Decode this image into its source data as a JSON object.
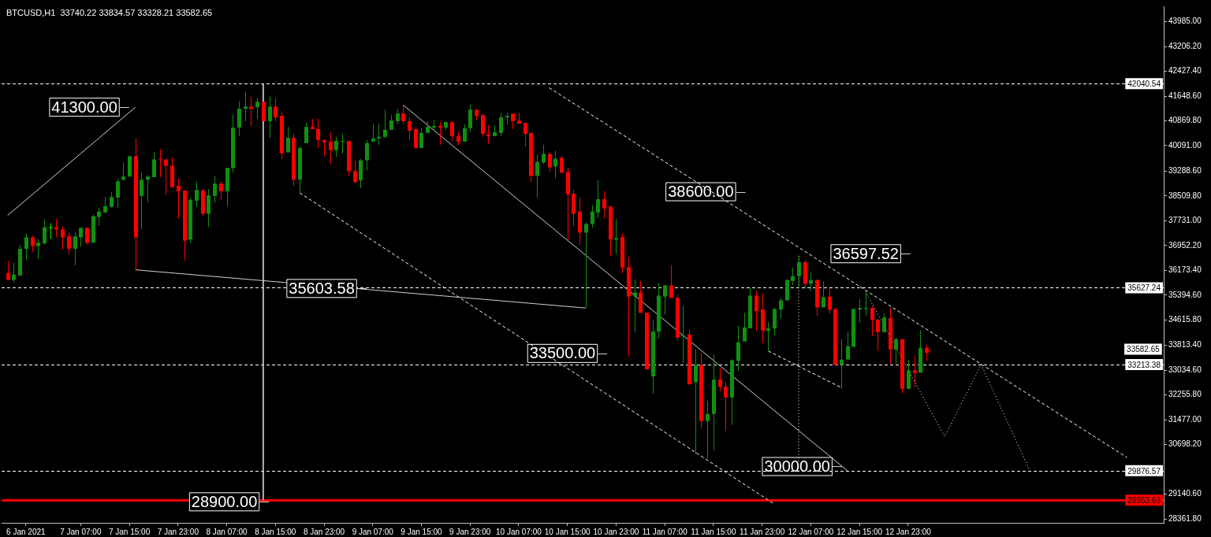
{
  "chart_data": {
    "type": "candlestick",
    "title": "BTCUSD,H1  33740.22 33834.57 33328.21 33582.65",
    "x": [
      "2021-01-06T19:00",
      "2021-01-06T20:00",
      "2021-01-06T21:00",
      "2021-01-06T22:00",
      "2021-01-06T23:00",
      "2021-01-07T00:00",
      "2021-01-07T01:00",
      "2021-01-07T02:00",
      "2021-01-07T03:00",
      "2021-01-07T04:00",
      "2021-01-07T05:00",
      "2021-01-07T06:00",
      "2021-01-07T07:00",
      "2021-01-07T08:00",
      "2021-01-07T09:00",
      "2021-01-07T10:00",
      "2021-01-07T11:00",
      "2021-01-07T12:00",
      "2021-01-07T13:00",
      "2021-01-07T14:00",
      "2021-01-07T15:00",
      "2021-01-07T16:00",
      "2021-01-07T17:00",
      "2021-01-07T18:00",
      "2021-01-07T19:00",
      "2021-01-07T20:00",
      "2021-01-07T21:00",
      "2021-01-07T22:00",
      "2021-01-07T23:00",
      "2021-01-08T00:00",
      "2021-01-08T01:00",
      "2021-01-08T02:00",
      "2021-01-08T03:00",
      "2021-01-08T04:00",
      "2021-01-08T05:00",
      "2021-01-08T06:00",
      "2021-01-08T07:00",
      "2021-01-08T08:00",
      "2021-01-08T09:00",
      "2021-01-08T10:00",
      "2021-01-08T11:00",
      "2021-01-08T12:00",
      "2021-01-08T13:00",
      "2021-01-08T14:00",
      "2021-01-08T15:00",
      "2021-01-08T16:00",
      "2021-01-08T17:00",
      "2021-01-08T18:00",
      "2021-01-08T19:00",
      "2021-01-08T20:00",
      "2021-01-08T21:00",
      "2021-01-08T22:00",
      "2021-01-08T23:00",
      "2021-01-09T00:00",
      "2021-01-09T01:00",
      "2021-01-09T02:00",
      "2021-01-09T03:00",
      "2021-01-09T04:00",
      "2021-01-09T05:00",
      "2021-01-09T06:00",
      "2021-01-09T07:00",
      "2021-01-09T08:00",
      "2021-01-09T09:00",
      "2021-01-09T10:00",
      "2021-01-09T11:00",
      "2021-01-09T12:00",
      "2021-01-09T13:00",
      "2021-01-09T14:00",
      "2021-01-09T15:00",
      "2021-01-09T16:00",
      "2021-01-09T17:00",
      "2021-01-09T18:00",
      "2021-01-09T19:00",
      "2021-01-09T20:00",
      "2021-01-09T21:00",
      "2021-01-09T22:00",
      "2021-01-09T23:00",
      "2021-01-10T00:00",
      "2021-01-10T01:00",
      "2021-01-10T02:00",
      "2021-01-10T03:00",
      "2021-01-10T04:00",
      "2021-01-10T05:00",
      "2021-01-10T06:00",
      "2021-01-10T07:00",
      "2021-01-10T08:00",
      "2021-01-10T09:00",
      "2021-01-10T10:00",
      "2021-01-10T11:00",
      "2021-01-10T12:00",
      "2021-01-10T13:00",
      "2021-01-10T14:00",
      "2021-01-10T15:00",
      "2021-01-10T16:00",
      "2021-01-10T17:00",
      "2021-01-10T18:00",
      "2021-01-10T19:00",
      "2021-01-10T20:00",
      "2021-01-10T21:00",
      "2021-01-10T22:00",
      "2021-01-10T23:00",
      "2021-01-11T00:00",
      "2021-01-11T01:00",
      "2021-01-11T02:00",
      "2021-01-11T03:00",
      "2021-01-11T04:00",
      "2021-01-11T05:00",
      "2021-01-11T06:00",
      "2021-01-11T07:00",
      "2021-01-11T08:00",
      "2021-01-11T09:00",
      "2021-01-11T10:00",
      "2021-01-11T11:00",
      "2021-01-11T12:00",
      "2021-01-11T13:00",
      "2021-01-11T14:00",
      "2021-01-11T15:00",
      "2021-01-11T16:00",
      "2021-01-11T17:00",
      "2021-01-11T18:00",
      "2021-01-11T19:00",
      "2021-01-11T20:00",
      "2021-01-11T21:00",
      "2021-01-11T22:00",
      "2021-01-11T23:00",
      "2021-01-12T00:00",
      "2021-01-12T01:00",
      "2021-01-12T02:00",
      "2021-01-12T03:00",
      "2021-01-12T04:00",
      "2021-01-12T05:00",
      "2021-01-12T06:00",
      "2021-01-12T07:00",
      "2021-01-12T08:00",
      "2021-01-12T09:00",
      "2021-01-12T10:00",
      "2021-01-12T11:00",
      "2021-01-12T12:00",
      "2021-01-12T13:00",
      "2021-01-12T14:00",
      "2021-01-12T15:00",
      "2021-01-12T16:00",
      "2021-01-12T17:00",
      "2021-01-12T18:00",
      "2021-01-12T19:00",
      "2021-01-12T20:00",
      "2021-01-12T21:00",
      "2021-01-12T22:00",
      "2021-01-12T23:00",
      "2021-01-13T00:00",
      "2021-01-13T01:00",
      "2021-01-13T02:00"
    ],
    "ohlc": [
      [
        36090,
        36480,
        35870,
        35870
      ],
      [
        35870,
        36410,
        35790,
        36040
      ],
      [
        36010,
        36970,
        36010,
        36850
      ],
      [
        36850,
        37340,
        36500,
        37210
      ],
      [
        37210,
        37260,
        36750,
        36940
      ],
      [
        36940,
        37160,
        36530,
        37040
      ],
      [
        37020,
        37780,
        36990,
        37530
      ],
      [
        37530,
        37650,
        37160,
        37530
      ],
      [
        37530,
        37780,
        37210,
        37460
      ],
      [
        37460,
        37560,
        36820,
        37210
      ],
      [
        37240,
        37360,
        36680,
        36850
      ],
      [
        36850,
        37360,
        36330,
        37240
      ],
      [
        37210,
        37510,
        36920,
        37510
      ],
      [
        37510,
        37510,
        36970,
        37040
      ],
      [
        37040,
        37920,
        37040,
        37870
      ],
      [
        37850,
        38140,
        37580,
        38020
      ],
      [
        37990,
        38480,
        37990,
        38190
      ],
      [
        38170,
        38630,
        38140,
        38480
      ],
      [
        38460,
        39050,
        38140,
        38970
      ],
      [
        39020,
        39560,
        39000,
        39120
      ],
      [
        39120,
        39760,
        39120,
        39760
      ],
      [
        39760,
        40320,
        36190,
        37210
      ],
      [
        38510,
        39270,
        37460,
        39020
      ],
      [
        39020,
        39170,
        38310,
        39120
      ],
      [
        39100,
        39900,
        39100,
        39660
      ],
      [
        39680,
        39980,
        39100,
        39660
      ],
      [
        39660,
        39660,
        38560,
        39460
      ],
      [
        39460,
        39730,
        38780,
        38780
      ],
      [
        38830,
        39050,
        37800,
        38660
      ],
      [
        38680,
        38680,
        36480,
        37110
      ],
      [
        37140,
        38460,
        37040,
        38390
      ],
      [
        38360,
        38970,
        38170,
        38700
      ],
      [
        38680,
        38730,
        37870,
        37950
      ],
      [
        37950,
        38730,
        37530,
        38530
      ],
      [
        38510,
        39140,
        38290,
        38900
      ],
      [
        38900,
        38970,
        38390,
        38660
      ],
      [
        38660,
        39390,
        38190,
        39390
      ],
      [
        39390,
        41080,
        39240,
        40660
      ],
      [
        40660,
        41490,
        40390,
        41250
      ],
      [
        41250,
        41790,
        40860,
        41320
      ],
      [
        41320,
        41640,
        40710,
        41250
      ],
      [
        41300,
        41590,
        40930,
        41470
      ],
      [
        41470,
        41470,
        40860,
        40860
      ],
      [
        40860,
        41640,
        40340,
        41320
      ],
      [
        41320,
        41590,
        40860,
        40980
      ],
      [
        41030,
        41120,
        39660,
        39850
      ],
      [
        39880,
        40680,
        39880,
        40340
      ],
      [
        40340,
        40460,
        38830,
        39020
      ],
      [
        39020,
        40070,
        38610,
        40020
      ],
      [
        40170,
        40810,
        40170,
        40680
      ],
      [
        40680,
        40930,
        40610,
        40610
      ],
      [
        40610,
        40950,
        40020,
        40270
      ],
      [
        40270,
        40270,
        39760,
        40200
      ],
      [
        40220,
        40510,
        39510,
        39950
      ],
      [
        39950,
        40370,
        39730,
        40240
      ],
      [
        40220,
        40460,
        39850,
        40240
      ],
      [
        40240,
        40240,
        39140,
        39290
      ],
      [
        39290,
        39610,
        38900,
        38950
      ],
      [
        39000,
        39680,
        38750,
        39630
      ],
      [
        39630,
        40270,
        39320,
        40170
      ],
      [
        40220,
        40780,
        40220,
        40320
      ],
      [
        40320,
        40780,
        40120,
        40370
      ],
      [
        40370,
        41220,
        40320,
        40590
      ],
      [
        40590,
        41050,
        40590,
        40880
      ],
      [
        40860,
        41250,
        40760,
        41100
      ],
      [
        41100,
        41370,
        40760,
        40860
      ],
      [
        40860,
        40980,
        40270,
        40560
      ],
      [
        40610,
        40640,
        40000,
        40020
      ],
      [
        40020,
        40640,
        40020,
        40490
      ],
      [
        40490,
        40860,
        40490,
        40680
      ],
      [
        40660,
        40900,
        40540,
        40710
      ],
      [
        40710,
        40830,
        40120,
        40660
      ],
      [
        40660,
        40860,
        40590,
        40830
      ],
      [
        40830,
        40860,
        40240,
        40390
      ],
      [
        40390,
        40540,
        40100,
        40220
      ],
      [
        40220,
        40760,
        40220,
        40640
      ],
      [
        40640,
        41390,
        40510,
        41220
      ],
      [
        41220,
        41220,
        40900,
        41030
      ],
      [
        41050,
        41100,
        40370,
        40460
      ],
      [
        40440,
        40730,
        40150,
        40390
      ],
      [
        40390,
        40730,
        40390,
        40510
      ],
      [
        40490,
        41120,
        40390,
        40980
      ],
      [
        40980,
        41120,
        40760,
        41030
      ],
      [
        41100,
        41100,
        40610,
        40860
      ],
      [
        40880,
        41120,
        40780,
        40780
      ],
      [
        40810,
        40810,
        40050,
        40460
      ],
      [
        40490,
        40490,
        38950,
        39140
      ],
      [
        39140,
        39800,
        38460,
        39580
      ],
      [
        39560,
        40120,
        39510,
        39830
      ],
      [
        39830,
        39880,
        39270,
        39410
      ],
      [
        39440,
        39930,
        39070,
        39680
      ],
      [
        39710,
        39760,
        39240,
        39240
      ],
      [
        39270,
        39390,
        37140,
        38560
      ],
      [
        38580,
        38700,
        37560,
        37950
      ],
      [
        38020,
        38460,
        36990,
        37360
      ],
      [
        37360,
        37680,
        34990,
        37630
      ],
      [
        37630,
        38220,
        37510,
        38020
      ],
      [
        37990,
        39000,
        37820,
        38410
      ],
      [
        38410,
        38660,
        37820,
        38120
      ],
      [
        38170,
        38220,
        36630,
        37140
      ],
      [
        37140,
        37780,
        36680,
        37190
      ],
      [
        37210,
        37340,
        36090,
        36260
      ],
      [
        36280,
        36600,
        33470,
        35350
      ],
      [
        35350,
        35890,
        34230,
        35480
      ],
      [
        35480,
        35840,
        34840,
        34840
      ],
      [
        34840,
        34840,
        33060,
        33060
      ],
      [
        32840,
        34600,
        32300,
        34250
      ],
      [
        34250,
        35790,
        34030,
        35380
      ],
      [
        35350,
        35720,
        34790,
        35700
      ],
      [
        35700,
        36330,
        35310,
        35310
      ],
      [
        35310,
        35400,
        33960,
        34060
      ],
      [
        34120,
        35060,
        33250,
        34130
      ],
      [
        34160,
        34330,
        32590,
        32590
      ],
      [
        32660,
        33690,
        30390,
        33200
      ],
      [
        33200,
        33590,
        31200,
        31440
      ],
      [
        31440,
        32080,
        30270,
        31660
      ],
      [
        31660,
        33520,
        30510,
        32740
      ],
      [
        32740,
        33110,
        32370,
        32520
      ],
      [
        32520,
        32670,
        31120,
        32180
      ],
      [
        32180,
        33370,
        31320,
        33350
      ],
      [
        33330,
        34430,
        33010,
        33910
      ],
      [
        33940,
        34840,
        33940,
        34380
      ],
      [
        34350,
        35620,
        34350,
        35380
      ],
      [
        35380,
        35530,
        34280,
        34890
      ],
      [
        34940,
        35430,
        33890,
        34280
      ],
      [
        34280,
        34550,
        33640,
        34350
      ],
      [
        34350,
        34990,
        34130,
        34960
      ],
      [
        34940,
        35310,
        34650,
        35230
      ],
      [
        35230,
        35890,
        35230,
        35870
      ],
      [
        35840,
        36260,
        35700,
        35990
      ],
      [
        35990,
        36630,
        35600,
        36430
      ],
      [
        36430,
        36500,
        35600,
        35750
      ],
      [
        35750,
        36110,
        35530,
        35870
      ],
      [
        35870,
        35890,
        34740,
        35010
      ],
      [
        35010,
        35820,
        35010,
        35330
      ],
      [
        35350,
        35600,
        34820,
        34940
      ],
      [
        34960,
        34960,
        33200,
        33200
      ],
      [
        33200,
        34010,
        32450,
        33370
      ],
      [
        33370,
        34250,
        33370,
        33790
      ],
      [
        33770,
        34960,
        33770,
        34960
      ],
      [
        34940,
        35260,
        34520,
        34990
      ],
      [
        34960,
        35500,
        34740,
        34990
      ],
      [
        34990,
        35040,
        34110,
        34620
      ],
      [
        34620,
        34650,
        33640,
        34230
      ],
      [
        34230,
        34820,
        34230,
        34690
      ],
      [
        34670,
        34990,
        33230,
        33690
      ],
      [
        33690,
        34060,
        33230,
        34010
      ],
      [
        34010,
        34010,
        32320,
        32450
      ],
      [
        32450,
        33370,
        32450,
        33030
      ],
      [
        33030,
        33500,
        32490,
        32960
      ],
      [
        32960,
        34300,
        32960,
        33740
      ],
      [
        33740.22,
        33834.57,
        33328.21,
        33582.65
      ]
    ],
    "colors": [
      "#ff0000",
      "#109010",
      "#109010",
      "#109010",
      "#ff0000",
      "#109010",
      "#109010",
      "#00ff00",
      "#ff0000",
      "#ff0000",
      "#ff0000",
      "#109010",
      "#109010",
      "#ff0000",
      "#109010",
      "#109010",
      "#109010",
      "#109010",
      "#109010",
      "#109010",
      "#109010",
      "#ff0000",
      "#109010",
      "#109010",
      "#109010",
      "#ff0000",
      "#ff0000",
      "#ff0000",
      "#ff0000",
      "#ff0000",
      "#109010",
      "#109010",
      "#ff0000",
      "#109010",
      "#109010",
      "#ff0000",
      "#109010",
      "#109010",
      "#109010",
      "#109010",
      "#ff0000",
      "#109010",
      "#ff0000",
      "#109010",
      "#ff0000",
      "#ff0000",
      "#109010",
      "#ff0000",
      "#109010",
      "#109010",
      "#ff0000",
      "#ff0000",
      "#ff0000",
      "#ff0000",
      "#109010",
      "#109010",
      "#ff0000",
      "#ff0000",
      "#109010",
      "#109010",
      "#109010",
      "#109010",
      "#109010",
      "#109010",
      "#109010",
      "#ff0000",
      "#ff0000",
      "#ff0000",
      "#109010",
      "#109010",
      "#109010",
      "#ff0000",
      "#109010",
      "#ff0000",
      "#ff0000",
      "#109010",
      "#109010",
      "#ff0000",
      "#ff0000",
      "#ff0000",
      "#109010",
      "#109010",
      "#109010",
      "#ff0000",
      "#ff0000",
      "#ff0000",
      "#ff0000",
      "#109010",
      "#109010",
      "#ff0000",
      "#109010",
      "#ff0000",
      "#ff0000",
      "#ff0000",
      "#ff0000",
      "#109010",
      "#109010",
      "#109010",
      "#ff0000",
      "#ff0000",
      "#109010",
      "#ff0000",
      "#ff0000",
      "#109010",
      "#ff0000",
      "#ff0000",
      "#109010",
      "#109010",
      "#109010",
      "#ff0000",
      "#ff0000",
      "#109010",
      "#ff0000",
      "#109010",
      "#ff0000",
      "#109010",
      "#109010",
      "#ff0000",
      "#ff0000",
      "#109010",
      "#109010",
      "#109010",
      "#109010",
      "#ff0000",
      "#ff0000",
      "#109010",
      "#109010",
      "#109010",
      "#109010",
      "#109010",
      "#109010",
      "#ff0000",
      "#109010",
      "#ff0000",
      "#109010",
      "#ff0000",
      "#ff0000",
      "#109010",
      "#109010",
      "#109010",
      "#109010",
      "#109010",
      "#ff0000",
      "#ff0000",
      "#109010",
      "#ff0000",
      "#109010",
      "#ff0000",
      "#109010",
      "#ff0000",
      "#109010",
      "#ff0000"
    ],
    "series": [
      {
        "type": "line",
        "color": "#d0d0d0",
        "line_style": "solid",
        "x": [
          "2021-01-06T19:00",
          "2021-01-07T16:00"
        ],
        "values": [
          37900,
          41300
        ]
      },
      {
        "type": "line",
        "color": "#d0d0d0",
        "line_style": "solid",
        "x": [
          "2021-01-07T16:00",
          "2021-01-10T18:00"
        ],
        "values": [
          36190,
          34990
        ]
      },
      {
        "type": "line",
        "color": "#d0d0d0",
        "line_style": "solid",
        "x": [
          "2021-01-08T13:00",
          "2021-01-08T13:00"
        ],
        "values": [
          42040,
          28950
        ]
      },
      {
        "type": "line",
        "color": "#d0d0d0",
        "line_style": "solid",
        "x": [
          "2021-01-09T12:00",
          "2021-01-12T13:00"
        ],
        "values": [
          41370,
          29880
        ]
      },
      {
        "type": "line",
        "color": "#ffffff",
        "line_style": "dashed",
        "x": [
          "2021-01-08T19:00",
          "2021-01-12T01:00"
        ],
        "values": [
          38610,
          28830
        ]
      },
      {
        "type": "line",
        "color": "#ffffff",
        "line_style": "dashed",
        "x": [
          "2021-01-10T12:00",
          "2021-01-14T11:00"
        ],
        "values": [
          41910,
          30290
        ]
      },
      {
        "type": "line",
        "color": "#ffffff",
        "line_style": "dashed",
        "x": [
          "2021-01-12T00:00",
          "2021-01-12T12:00"
        ],
        "values": [
          33640,
          32490
        ]
      },
      {
        "type": "line",
        "color": "#ffffff",
        "line_style": "dotted",
        "x": [
          "2021-01-12T05:00",
          "2021-01-12T05:00"
        ],
        "values": [
          36630,
          29880
        ]
      },
      {
        "type": "line",
        "color": "#ffffff",
        "line_style": "dotted",
        "x": [
          "2021-01-12T16:00",
          "2021-01-13T05:00",
          "2021-01-13T11:00",
          "2021-01-13T19:00"
        ],
        "values": [
          35500,
          30950,
          33210,
          29880
        ]
      }
    ],
    "marker": "none",
    "xlim": [
      "2021-01-06T18:00",
      "2021-01-14T17:00"
    ],
    "xticks": [
      {
        "value": "2021-01-06T22:00",
        "label": "6 Jan 2021"
      },
      {
        "value": "2021-01-07T07:00",
        "label": "7 Jan 07:00"
      },
      {
        "value": "2021-01-07T15:00",
        "label": "7 Jan 15:00"
      },
      {
        "value": "2021-01-07T23:00",
        "label": "7 Jan 23:00"
      },
      {
        "value": "2021-01-08T07:00",
        "label": "8 Jan 07:00"
      },
      {
        "value": "2021-01-08T15:00",
        "label": "8 Jan 15:00"
      },
      {
        "value": "2021-01-08T23:00",
        "label": "8 Jan 23:00"
      },
      {
        "value": "2021-01-09T07:00",
        "label": "9 Jan 07:00"
      },
      {
        "value": "2021-01-09T15:00",
        "label": "9 Jan 15:00"
      },
      {
        "value": "2021-01-09T23:00",
        "label": "9 Jan 23:00"
      },
      {
        "value": "2021-01-10T07:00",
        "label": "10 Jan 07:00"
      },
      {
        "value": "2021-01-10T15:00",
        "label": "10 Jan 15:00"
      },
      {
        "value": "2021-01-10T23:00",
        "label": "10 Jan 23:00"
      },
      {
        "value": "2021-01-11T07:00",
        "label": "11 Jan 07:00"
      },
      {
        "value": "2021-01-11T15:00",
        "label": "11 Jan 15:00"
      },
      {
        "value": "2021-01-11T23:00",
        "label": "11 Jan 23:00"
      },
      {
        "value": "2021-01-12T07:00",
        "label": "12 Jan 07:00"
      },
      {
        "value": "2021-01-12T15:00",
        "label": "12 Jan 15:00"
      },
      {
        "value": "2021-01-12T23:00",
        "label": "12 Jan 23:00"
      }
    ],
    "ylim": [
      28240,
      44470
    ],
    "yticks": [
      {
        "value": 43985,
        "label": "43985.00"
      },
      {
        "value": 43206.2,
        "label": "43206.20"
      },
      {
        "value": 42427.4,
        "label": "42427.40"
      },
      {
        "value": 41648.6,
        "label": "41648.60"
      },
      {
        "value": 40869.8,
        "label": "40869.80"
      },
      {
        "value": 40091,
        "label": "40091.00"
      },
      {
        "value": 39288.6,
        "label": "39288.60"
      },
      {
        "value": 38509.8,
        "label": "38509.80"
      },
      {
        "value": 37731,
        "label": "37731.00"
      },
      {
        "value": 36952.2,
        "label": "36952.20"
      },
      {
        "value": 36173.4,
        "label": "36173.40"
      },
      {
        "value": 35394.6,
        "label": "35394.60"
      },
      {
        "value": 34615.8,
        "label": "34615.80"
      },
      {
        "value": 33813.4,
        "label": "33813.40"
      },
      {
        "value": 33034.6,
        "label": "33034.60"
      },
      {
        "value": 32255.8,
        "label": "32255.80"
      },
      {
        "value": 31477,
        "label": "31477.00"
      },
      {
        "value": 30698.2,
        "label": "30698.20"
      },
      {
        "value": 29140.6,
        "label": "29140.60"
      },
      {
        "value": 28361.8,
        "label": "28361.80"
      }
    ],
    "ref_lines": [
      {
        "axis": "y",
        "value": 42040.54,
        "label": "42040.54",
        "color": "#ffffff",
        "line_style": "dashed"
      },
      {
        "axis": "y",
        "value": 35627.24,
        "label": "35627.24",
        "color": "#ffffff",
        "line_style": "dashed"
      },
      {
        "axis": "y",
        "value": 33213.38,
        "label": "33213.38",
        "color": "#ffffff",
        "line_style": "dashed"
      },
      {
        "axis": "y",
        "value": 29876.57,
        "label": "29876.57",
        "color": "#ffffff",
        "line_style": "dashed"
      },
      {
        "axis": "y",
        "value": 28953.63,
        "label": "28953.63",
        "color": "#ff0000",
        "line_style": "solid"
      }
    ],
    "annotations": [
      {
        "text": "41300.00",
        "x": "2021-01-07T16:00",
        "y": 41300
      },
      {
        "text": "35603.58",
        "x": "2021-01-09T07:00",
        "y": 35603.58
      },
      "38600.00",
      "36597.52",
      "33500.00",
      "30000.00",
      {
        "text": "28900.00",
        "x": "2021-01-08T15:00",
        "y": 28900
      },
      "33582.65"
    ]
  }
}
